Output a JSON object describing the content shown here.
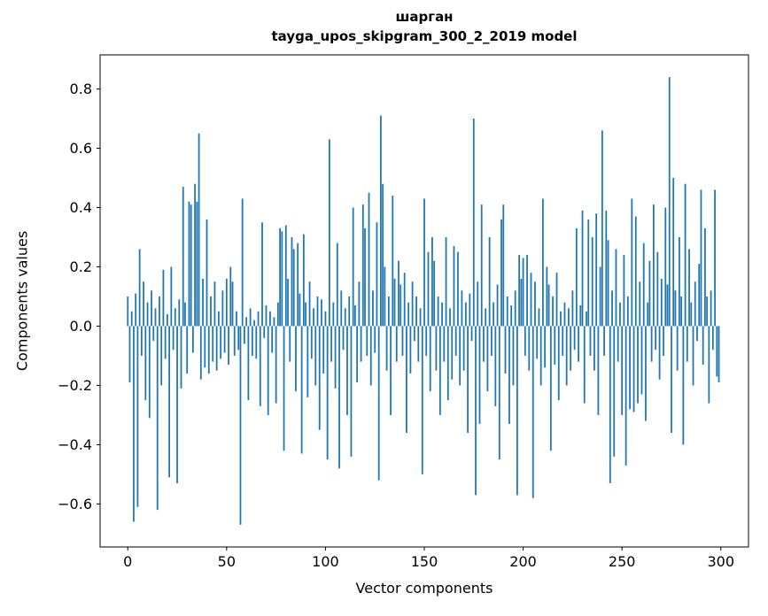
{
  "figure": {
    "background": "#ffffff",
    "bar_color": "#1f77b4",
    "axis_color": "#000000"
  },
  "chart_data": {
    "type": "bar",
    "title": "шарган",
    "subtitle": "tayga_upos_skipgram_300_2_2019 model",
    "xlabel": "Vector components",
    "ylabel": "Components values",
    "grid": false,
    "legend_position": "none",
    "xlim": [
      -14,
      314
    ],
    "ylim": [
      -0.745,
      0.915
    ],
    "xticks": [
      0,
      50,
      100,
      150,
      200,
      250,
      300
    ],
    "yticks": [
      -0.6,
      -0.4,
      -0.2,
      0.0,
      0.2,
      0.4,
      0.6,
      0.8
    ],
    "x_start": 0,
    "bar_width": 0.8,
    "values": [
      0.1,
      -0.19,
      0.05,
      -0.66,
      0.11,
      -0.61,
      0.26,
      -0.1,
      0.15,
      -0.25,
      0.08,
      -0.31,
      0.12,
      -0.05,
      0.06,
      -0.62,
      0.1,
      -0.2,
      0.19,
      -0.11,
      0.04,
      -0.51,
      0.2,
      -0.08,
      0.06,
      -0.53,
      0.09,
      -0.21,
      0.47,
      0.08,
      -0.16,
      0.42,
      0.41,
      -0.09,
      0.48,
      0.42,
      0.65,
      -0.18,
      0.16,
      -0.14,
      0.36,
      -0.16,
      0.1,
      -0.12,
      0.15,
      -0.15,
      0.05,
      -0.11,
      0.12,
      -0.09,
      0.16,
      -0.13,
      0.2,
      0.15,
      -0.1,
      0.05,
      -0.08,
      -0.67,
      0.43,
      -0.06,
      0.03,
      -0.25,
      0.06,
      -0.1,
      0.02,
      -0.11,
      0.05,
      -0.27,
      0.35,
      -0.04,
      0.07,
      -0.3,
      0.05,
      -0.09,
      0.03,
      -0.26,
      0.08,
      0.33,
      0.32,
      -0.42,
      0.34,
      0.16,
      -0.12,
      0.3,
      0.26,
      -0.22,
      0.28,
      0.11,
      -0.43,
      0.31,
      0.08,
      -0.24,
      0.15,
      -0.11,
      0.06,
      -0.2,
      0.1,
      -0.35,
      0.09,
      -0.16,
      0.05,
      -0.45,
      0.63,
      -0.12,
      0.08,
      -0.21,
      0.28,
      -0.48,
      0.12,
      -0.08,
      0.06,
      -0.3,
      0.1,
      -0.44,
      0.4,
      0.07,
      -0.19,
      0.15,
      -0.12,
      0.41,
      0.33,
      -0.1,
      0.45,
      -0.2,
      0.12,
      -0.09,
      0.35,
      -0.52,
      0.71,
      0.48,
      0.2,
      -0.15,
      0.1,
      -0.3,
      0.44,
      0.16,
      -0.12,
      0.22,
      0.14,
      -0.1,
      0.18,
      -0.36,
      0.08,
      -0.16,
      0.15,
      -0.05,
      0.1,
      -0.12,
      0.06,
      -0.5,
      0.43,
      -0.1,
      0.25,
      -0.22,
      0.3,
      0.22,
      -0.15,
      0.1,
      -0.3,
      0.08,
      -0.12,
      0.3,
      -0.25,
      0.06,
      -0.18,
      0.27,
      -0.1,
      0.25,
      -0.2,
      0.12,
      -0.15,
      0.08,
      -0.36,
      0.11,
      -0.05,
      0.7,
      -0.57,
      0.15,
      -0.33,
      0.41,
      -0.12,
      0.06,
      -0.22,
      0.3,
      -0.1,
      0.08,
      -0.27,
      0.14,
      -0.45,
      0.36,
      0.41,
      -0.16,
      0.1,
      -0.33,
      0.07,
      -0.2,
      0.12,
      -0.57,
      0.24,
      0.16,
      0.23,
      -0.1,
      0.24,
      -0.15,
      0.18,
      -0.58,
      0.15,
      -0.11,
      0.06,
      -0.2,
      0.43,
      -0.14,
      0.2,
      0.14,
      -0.42,
      0.1,
      -0.13,
      0.18,
      -0.25,
      0.05,
      -0.1,
      0.08,
      -0.2,
      0.06,
      -0.15,
      0.12,
      -0.08,
      0.33,
      -0.12,
      0.07,
      0.39,
      -0.26,
      0.05,
      0.36,
      -0.1,
      0.3,
      -0.15,
      0.38,
      -0.3,
      0.2,
      0.66,
      -0.1,
      0.39,
      0.29,
      -0.53,
      0.12,
      -0.44,
      0.26,
      -0.12,
      0.08,
      -0.3,
      0.24,
      -0.47,
      0.1,
      -0.28,
      0.43,
      -0.29,
      0.37,
      -0.26,
      0.15,
      -0.23,
      0.28,
      -0.32,
      0.08,
      0.22,
      -0.12,
      0.41,
      -0.08,
      0.25,
      -0.18,
      0.16,
      -0.1,
      0.4,
      0.14,
      0.84,
      -0.36,
      0.5,
      0.12,
      -0.15,
      0.3,
      0.1,
      -0.4,
      0.48,
      -0.12,
      0.26,
      0.08,
      -0.2,
      0.15,
      -0.05,
      0.21,
      0.46,
      -0.13,
      0.33,
      0.1,
      -0.26,
      0.12,
      -0.08,
      0.46,
      -0.17,
      -0.19
    ]
  }
}
